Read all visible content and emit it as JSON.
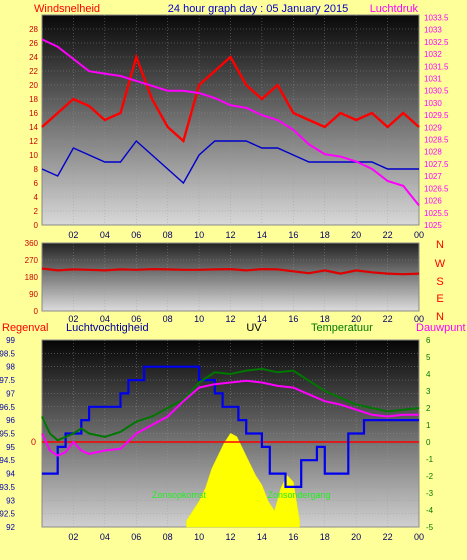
{
  "header": {
    "wind_label": "Windsnelheid",
    "title": "24 hour graph day : 05 January 2015",
    "pressure_label": "Luchtdruk"
  },
  "legend": {
    "rain": "Regenval",
    "humidity": "Luchtvochtigheid",
    "uv": "UV",
    "temperature": "Temperatuur",
    "dewpoint": "Dauwpunt"
  },
  "annotations": {
    "sunrise": "Zonsopkomst",
    "sunset": "Zonsondergang"
  },
  "compass": [
    "N",
    "W",
    "S",
    "E",
    "N"
  ],
  "colors": {
    "background": "#ffff99",
    "wind_gust": "#ff0000",
    "wind_avg": "#0000cc",
    "pressure": "#ff00ff",
    "direction": "#dd0000",
    "humidity": "#0000ee",
    "temperature": "#007700",
    "dewpoint": "#ff00ff",
    "solar": "#ffff00",
    "rain": "#ff0000"
  },
  "chart_data": [
    {
      "id": "wind-pressure",
      "type": "line",
      "x_ticks": [
        "02",
        "04",
        "06",
        "08",
        "10",
        "12",
        "14",
        "16",
        "18",
        "20",
        "22",
        "00"
      ],
      "y_left": {
        "label": "Windsnelheid",
        "ticks": [
          "0",
          "2",
          "4",
          "6",
          "8",
          "10",
          "12",
          "14",
          "16",
          "18",
          "20",
          "22",
          "24",
          "26",
          "28"
        ],
        "range": [
          0,
          30
        ]
      },
      "y_right": {
        "label": "Luchtdruk",
        "ticks": [
          "1025",
          "1025.5",
          "1026",
          "1026.5",
          "1027",
          "1027.5",
          "1028",
          "1028.5",
          "1029",
          "1029.5",
          "1030",
          "1030.5",
          "1031",
          "1031.5",
          "1032",
          "1032.5",
          "1033",
          "1033.5"
        ],
        "range": [
          1025,
          1033.6
        ]
      },
      "series": [
        {
          "x": [
            0,
            1,
            2,
            3,
            4,
            5,
            6,
            7,
            8,
            9,
            10,
            11,
            12,
            13,
            14,
            15,
            16,
            17,
            18,
            19,
            20,
            21,
            22,
            23,
            24
          ],
          "values": [
            14,
            16,
            18,
            17,
            15,
            16,
            24,
            18,
            14,
            12,
            20,
            22,
            24,
            20,
            18,
            20,
            16,
            15,
            14,
            16,
            15,
            16,
            14,
            16,
            14
          ]
        },
        {
          "x": [
            0,
            1,
            2,
            3,
            4,
            5,
            6,
            7,
            8,
            9,
            10,
            11,
            12,
            13,
            14,
            15,
            16,
            17,
            18,
            19,
            20,
            21,
            22,
            23,
            24
          ],
          "values": [
            8,
            7,
            11,
            10,
            9,
            9,
            12,
            10,
            8,
            6,
            10,
            12,
            12,
            12,
            11,
            11,
            10,
            9,
            9,
            9,
            9,
            9,
            8,
            8,
            8
          ]
        },
        {
          "x": [
            0,
            1,
            2,
            3,
            4,
            5,
            6,
            7,
            8,
            9,
            10,
            11,
            12,
            13,
            14,
            15,
            16,
            17,
            18,
            19,
            20,
            21,
            22,
            23,
            24
          ],
          "values": [
            1032.6,
            1032.3,
            1031.8,
            1031.3,
            1031.2,
            1031.1,
            1030.9,
            1030.7,
            1030.5,
            1030.5,
            1030.4,
            1030.2,
            1029.9,
            1029.8,
            1029.5,
            1029.3,
            1028.9,
            1028.3,
            1027.9,
            1027.8,
            1027.6,
            1027.3,
            1026.8,
            1026.6,
            1025.8
          ]
        }
      ]
    },
    {
      "id": "wind-direction",
      "type": "line",
      "x_ticks": [
        "02",
        "04",
        "06",
        "08",
        "10",
        "12",
        "14",
        "16",
        "18",
        "20",
        "22",
        "00"
      ],
      "y_left": {
        "ticks": [
          "0",
          "90",
          "180",
          "270",
          "360"
        ],
        "range": [
          0,
          360
        ]
      },
      "series": [
        {
          "x": [
            0,
            1,
            2,
            3,
            4,
            5,
            6,
            7,
            8,
            9,
            10,
            11,
            12,
            13,
            14,
            15,
            16,
            17,
            18,
            19,
            20,
            21,
            22,
            23,
            24
          ],
          "values": [
            225,
            215,
            220,
            218,
            215,
            220,
            218,
            222,
            220,
            218,
            218,
            220,
            222,
            215,
            222,
            220,
            210,
            200,
            215,
            198,
            215,
            205,
            198,
            195,
            198
          ]
        }
      ]
    },
    {
      "id": "humidity-temp-uv",
      "type": "line",
      "x_ticks": [
        "02",
        "04",
        "06",
        "08",
        "10",
        "12",
        "14",
        "16",
        "18",
        "20",
        "22",
        "00"
      ],
      "y_left": {
        "label": "Luchtvochtigheid",
        "ticks": [
          "92",
          "92.5",
          "93",
          "93.5",
          "94",
          "94.5",
          "95",
          "95.5",
          "96",
          "96.5",
          "97",
          "97.5",
          "98",
          "98.5",
          "99"
        ],
        "range": [
          92,
          99
        ]
      },
      "y_right": {
        "label": "Temperatuur",
        "ticks": [
          "-5",
          "-4",
          "-3",
          "-2",
          "-1",
          "0",
          "1",
          "2",
          "3",
          "4",
          "5",
          "6"
        ],
        "range": [
          -5,
          6
        ]
      },
      "rain_axis": {
        "label": "Regenval",
        "ticks": [
          "0"
        ]
      },
      "series": [
        {
          "x": [
            0,
            0.5,
            0.5,
            1,
            1,
            1.5,
            1.5,
            2.5,
            2.5,
            3,
            3,
            4,
            4,
            5,
            5,
            5.5,
            5.5,
            6.5,
            6.5,
            7,
            7,
            10,
            10,
            11,
            11,
            11.5,
            11.5,
            12.5,
            12.5,
            13,
            13,
            14,
            14,
            14.5,
            14.5,
            15.5,
            15.5,
            16.5,
            16.5,
            17.5,
            17.5,
            18,
            18,
            19.5,
            19.5,
            20.5,
            20.5,
            24
          ],
          "values": [
            94,
            94,
            94,
            94,
            95,
            95,
            95.5,
            95.5,
            96,
            96,
            96.5,
            96.5,
            96.5,
            96.5,
            97,
            97,
            97.5,
            97.5,
            98,
            98,
            98,
            98,
            97.5,
            97.5,
            97,
            97,
            96.5,
            96.5,
            96,
            96,
            95.5,
            95.5,
            95,
            95,
            94,
            94,
            93.5,
            93.5,
            94.5,
            94.5,
            95,
            95,
            94,
            94,
            95.5,
            95.5,
            96,
            96
          ]
        },
        {
          "x": [
            0,
            0.5,
            1,
            2,
            2.5,
            3,
            4,
            5,
            6,
            7,
            8,
            9,
            10,
            11,
            12,
            13,
            14,
            15,
            16,
            17,
            18,
            19,
            20,
            21,
            22,
            23,
            24
          ],
          "values": [
            1.5,
            0.5,
            0.1,
            0.5,
            0.8,
            0.5,
            0.3,
            0.6,
            1.2,
            1.5,
            2,
            2.5,
            3.5,
            4.1,
            4,
            4.2,
            4.3,
            4.1,
            4.2,
            3.6,
            3,
            2.6,
            2.2,
            2,
            1.8,
            1.9,
            2
          ]
        },
        {
          "x": [
            0,
            0.5,
            1,
            1.5,
            2,
            2.5,
            3,
            4,
            5,
            6,
            7,
            8,
            9,
            10,
            11,
            12,
            13,
            14,
            15,
            16,
            17,
            18,
            19,
            20,
            21,
            22,
            23,
            24
          ],
          "values": [
            0.5,
            -0.5,
            -0.8,
            -0.6,
            0,
            -0.5,
            -0.7,
            -0.5,
            -0.4,
            0.5,
            1,
            1.5,
            2.4,
            3.2,
            3.4,
            3.5,
            3.6,
            3.5,
            3.3,
            3.2,
            2.8,
            2.4,
            2.2,
            1.9,
            1.6,
            1.5,
            1.6,
            1.6
          ]
        },
        {
          "x": [
            9.2,
            9.6,
            10,
            10.4,
            10.8,
            11.2,
            11.6,
            12,
            12.4,
            12.8,
            13.2,
            13.6,
            14,
            14.4,
            14.8,
            15.2,
            15.6,
            16,
            16.4
          ],
          "values": [
            0.2,
            0.5,
            0.8,
            1.2,
            1.8,
            2.2,
            2.6,
            2.9,
            2.8,
            2.4,
            2,
            1.6,
            1.3,
            0.8,
            0.5,
            1.2,
            1.6,
            1.4,
            0.2
          ]
        },
        {
          "x": [
            0,
            24
          ],
          "values": [
            0,
            0
          ]
        }
      ]
    }
  ]
}
